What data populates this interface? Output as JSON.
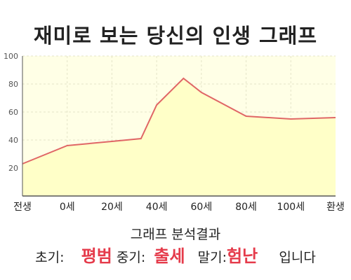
{
  "title": "재미로 보는 당신의 인생 그래프",
  "chart_data": {
    "type": "area",
    "x_labels": [
      "전생",
      "0세",
      "20세",
      "40세",
      "60세",
      "80세",
      "100세",
      "환생"
    ],
    "x": [
      -20,
      0,
      20,
      40,
      60,
      80,
      100,
      120
    ],
    "series": [
      {
        "x": [
          -20,
          0,
          20,
          33,
          40,
          52,
          60,
          80,
          100,
          120
        ],
        "y": [
          23,
          36,
          39,
          41,
          65,
          84,
          74,
          57,
          55,
          56
        ]
      }
    ],
    "y_ticks": [
      20,
      40,
      60,
      80,
      100
    ],
    "ylim": [
      0,
      100
    ],
    "xlim": [
      -20,
      120
    ],
    "grid": true,
    "line_color": "#e06666",
    "fill_color": "#ffffc8",
    "plot_bg": "#ffffe6"
  },
  "summary": {
    "heading": "그래프 분석결과",
    "early_label": "초기:",
    "early_value": "평범",
    "mid_label": "중기:",
    "mid_value": "출세",
    "late_label": "말기:",
    "late_value": "험난",
    "ending": "입니다",
    "highlight_color": "#e53b4b"
  }
}
